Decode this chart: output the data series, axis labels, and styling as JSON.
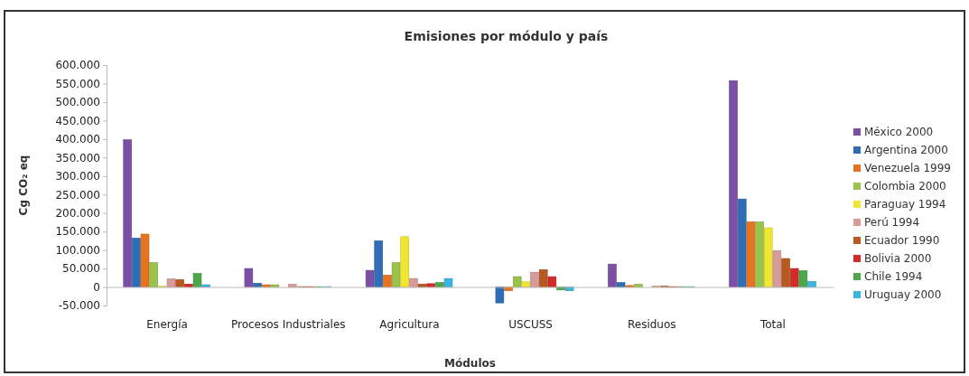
{
  "chart_data": {
    "type": "bar",
    "title": "Emisiones por módulo y país",
    "xlabel": "Módulos",
    "ylabel": "Cg CO₂ eq",
    "categories": [
      "Energía",
      "Procesos Industriales",
      "Agricultura",
      "USCUSS",
      "Residuos",
      "Total"
    ],
    "series": [
      {
        "name": "México 2000",
        "color": "#7b4fa6",
        "values": [
          398000,
          50000,
          45000,
          0,
          62000,
          558000
        ]
      },
      {
        "name": "Argentina 2000",
        "color": "#2f6db5",
        "values": [
          132000,
          10000,
          125000,
          -43000,
          12000,
          238000
        ]
      },
      {
        "name": "Venezuela 1999",
        "color": "#e8731e",
        "values": [
          143000,
          6000,
          32000,
          -10000,
          4000,
          176000
        ]
      },
      {
        "name": "Colombia 2000",
        "color": "#9bc24a",
        "values": [
          66000,
          6000,
          66000,
          28000,
          7000,
          176000
        ]
      },
      {
        "name": "Paraguay 1994",
        "color": "#f0e830",
        "values": [
          2000,
          0,
          136000,
          14000,
          0,
          160000
        ]
      },
      {
        "name": "Perú 1994",
        "color": "#d99a9a",
        "values": [
          22000,
          7000,
          23000,
          40000,
          2000,
          98000
        ]
      },
      {
        "name": "Ecuador 1990",
        "color": "#b85a20",
        "values": [
          20000,
          1000,
          8000,
          47000,
          2000,
          77000
        ]
      },
      {
        "name": "Bolivia 2000",
        "color": "#d42a2a",
        "values": [
          8000,
          1000,
          9000,
          28000,
          1000,
          50000
        ]
      },
      {
        "name": "Chile 1994",
        "color": "#4aa84a",
        "values": [
          37000,
          1000,
          12000,
          -8000,
          1000,
          44000
        ]
      },
      {
        "name": "Uruguay 2000",
        "color": "#3ab4e0",
        "values": [
          6000,
          1000,
          23000,
          -10000,
          1000,
          15000
        ]
      }
    ],
    "ylim": [
      -50000,
      600000
    ],
    "yticks": [
      {
        "value": -50000,
        "label": "-50.000"
      },
      {
        "value": 0,
        "label": "0"
      },
      {
        "value": 50000,
        "label": "50.000"
      },
      {
        "value": 100000,
        "label": "100.000"
      },
      {
        "value": 150000,
        "label": "150.000"
      },
      {
        "value": 200000,
        "label": "200.000"
      },
      {
        "value": 250000,
        "label": "250.000"
      },
      {
        "value": 300000,
        "label": "300.000"
      },
      {
        "value": 350000,
        "label": "350.000"
      },
      {
        "value": 400000,
        "label": "400.000"
      },
      {
        "value": 450000,
        "label": "450.000"
      },
      {
        "value": 500000,
        "label": "500.000"
      },
      {
        "value": 550000,
        "label": "550.000"
      },
      {
        "value": 600000,
        "label": "600.000"
      }
    ],
    "legend": "right"
  }
}
